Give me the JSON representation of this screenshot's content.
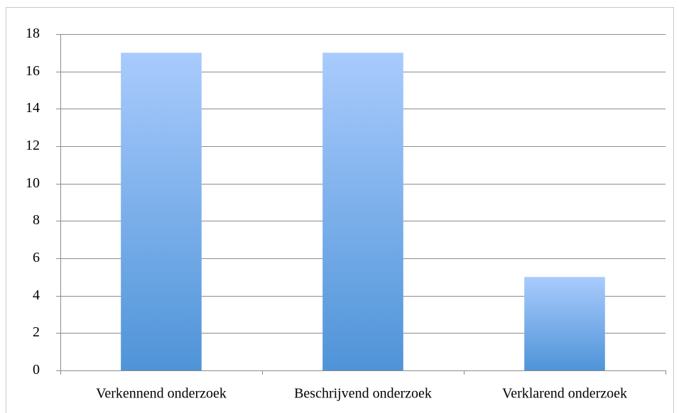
{
  "chart_data": {
    "type": "bar",
    "categories": [
      "Verkennend onderzoek",
      "Beschrijvend onderzoek",
      "Verklarend onderzoek"
    ],
    "values": [
      17,
      17,
      5
    ],
    "color": "#4f94d8",
    "ylim": [
      0,
      18
    ],
    "yticks": [
      0,
      2,
      4,
      6,
      8,
      10,
      12,
      14,
      16,
      18
    ],
    "grid": true
  }
}
